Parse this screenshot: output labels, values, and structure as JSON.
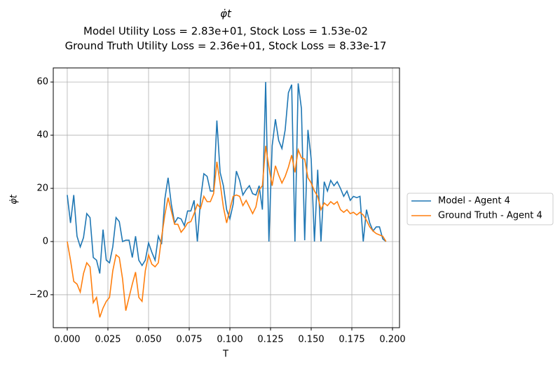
{
  "chart_data": {
    "type": "line",
    "title": "φ̇t",
    "subtitle": [
      "Model Utility Loss = 2.83e+01, Stock Loss = 1.53e-02",
      "Ground Truth Utility Loss = 2.36e+01, Stock Loss = 8.33e-17"
    ],
    "xlabel": "T",
    "ylabel": "φ̇t",
    "x": [
      0,
      0.002,
      0.004,
      0.006,
      0.008,
      0.01,
      0.012,
      0.014,
      0.016,
      0.018,
      0.02,
      0.022,
      0.024,
      0.026,
      0.028,
      0.03,
      0.032,
      0.034,
      0.036,
      0.038,
      0.04,
      0.042,
      0.044,
      0.046,
      0.048,
      0.05,
      0.052,
      0.054,
      0.056,
      0.058,
      0.06,
      0.062,
      0.064,
      0.066,
      0.068,
      0.07,
      0.072,
      0.074,
      0.076,
      0.078,
      0.08,
      0.082,
      0.084,
      0.086,
      0.088,
      0.09,
      0.092,
      0.094,
      0.096,
      0.098,
      0.1,
      0.102,
      0.104,
      0.106,
      0.108,
      0.11,
      0.112,
      0.114,
      0.116,
      0.118,
      0.12,
      0.122,
      0.124,
      0.126,
      0.128,
      0.13,
      0.132,
      0.134,
      0.136,
      0.138,
      0.14,
      0.142,
      0.144,
      0.146,
      0.148,
      0.15,
      0.152,
      0.154,
      0.156,
      0.158,
      0.16,
      0.162,
      0.164,
      0.166,
      0.168,
      0.17,
      0.172,
      0.174,
      0.176,
      0.178,
      0.18,
      0.182,
      0.184,
      0.186,
      0.188,
      0.19,
      0.192,
      0.194,
      0.196
    ],
    "series": [
      {
        "name": "Model - Agent 4",
        "color": "#1f77b4",
        "values": [
          17.5,
          7,
          17.5,
          2,
          -2,
          1.5,
          10.5,
          9,
          -6,
          -7,
          -12,
          4.5,
          -7,
          -8,
          -2,
          9,
          7.5,
          0,
          0.5,
          0.5,
          -6,
          2,
          -7,
          -9,
          -7,
          -0.5,
          -4,
          -7,
          2,
          -1,
          16,
          24,
          14,
          7,
          9,
          8.5,
          6,
          11.5,
          11.5,
          15.5,
          0,
          16,
          25.5,
          24.5,
          19,
          19,
          45.5,
          26,
          21,
          12,
          8.5,
          14,
          26.5,
          23,
          17.5,
          19.5,
          21,
          18,
          17.5,
          21,
          12,
          60,
          0,
          36,
          46,
          38,
          35,
          42,
          56,
          59,
          0,
          59.5,
          50,
          0.5,
          42,
          31,
          0,
          27,
          0,
          22.5,
          19,
          23,
          21,
          22.5,
          20,
          17,
          19,
          15.5,
          17,
          16.5,
          17,
          0,
          12,
          7,
          4,
          5.5,
          5.5,
          1,
          0
        ]
      },
      {
        "name": "Ground Truth - Agent 4",
        "color": "#ff7f0e",
        "values": [
          0,
          -7,
          -15,
          -16,
          -19,
          -12,
          -8,
          -9.5,
          -23,
          -21,
          -28.5,
          -25,
          -22.5,
          -21,
          -11,
          -5,
          -6,
          -14,
          -26,
          -21,
          -16,
          -11.5,
          -21,
          -22.5,
          -11,
          -5,
          -8.5,
          -9.5,
          -8,
          1.5,
          10,
          16.5,
          11.5,
          6.5,
          6.5,
          3.5,
          5,
          7,
          7.5,
          10.5,
          14,
          12.5,
          17,
          15,
          15,
          18,
          30,
          22,
          13,
          7,
          12,
          17,
          17.5,
          17,
          13.5,
          15.5,
          13,
          10.5,
          13,
          19.5,
          21,
          36,
          28,
          21,
          28.5,
          25,
          22,
          24.5,
          28,
          32.5,
          26,
          34.5,
          31.5,
          31,
          24,
          22,
          19,
          17,
          12,
          14.5,
          13.5,
          15,
          14,
          15,
          12,
          11,
          12,
          10.5,
          11,
          10,
          11,
          10,
          8,
          5.5,
          4,
          3,
          2.5,
          2,
          0
        ]
      }
    ],
    "xlim": [
      -0.0086,
      0.2043
    ],
    "ylim": [
      -32.4,
      65.3
    ],
    "xticks": [
      {
        "value": 0,
        "label": "0.000"
      },
      0.025,
      {
        "value": 0.05,
        "label": "0.050"
      },
      0.075,
      {
        "value": 0.1,
        "label": "0.100"
      },
      0.125,
      {
        "value": 0.15,
        "label": "0.150"
      },
      0.175,
      {
        "value": 0.2,
        "label": "0.200"
      }
    ],
    "yticks": [
      {
        "value": -20,
        "label": "−20"
      },
      0,
      20,
      40,
      60
    ],
    "grid": true,
    "legend": "right"
  }
}
